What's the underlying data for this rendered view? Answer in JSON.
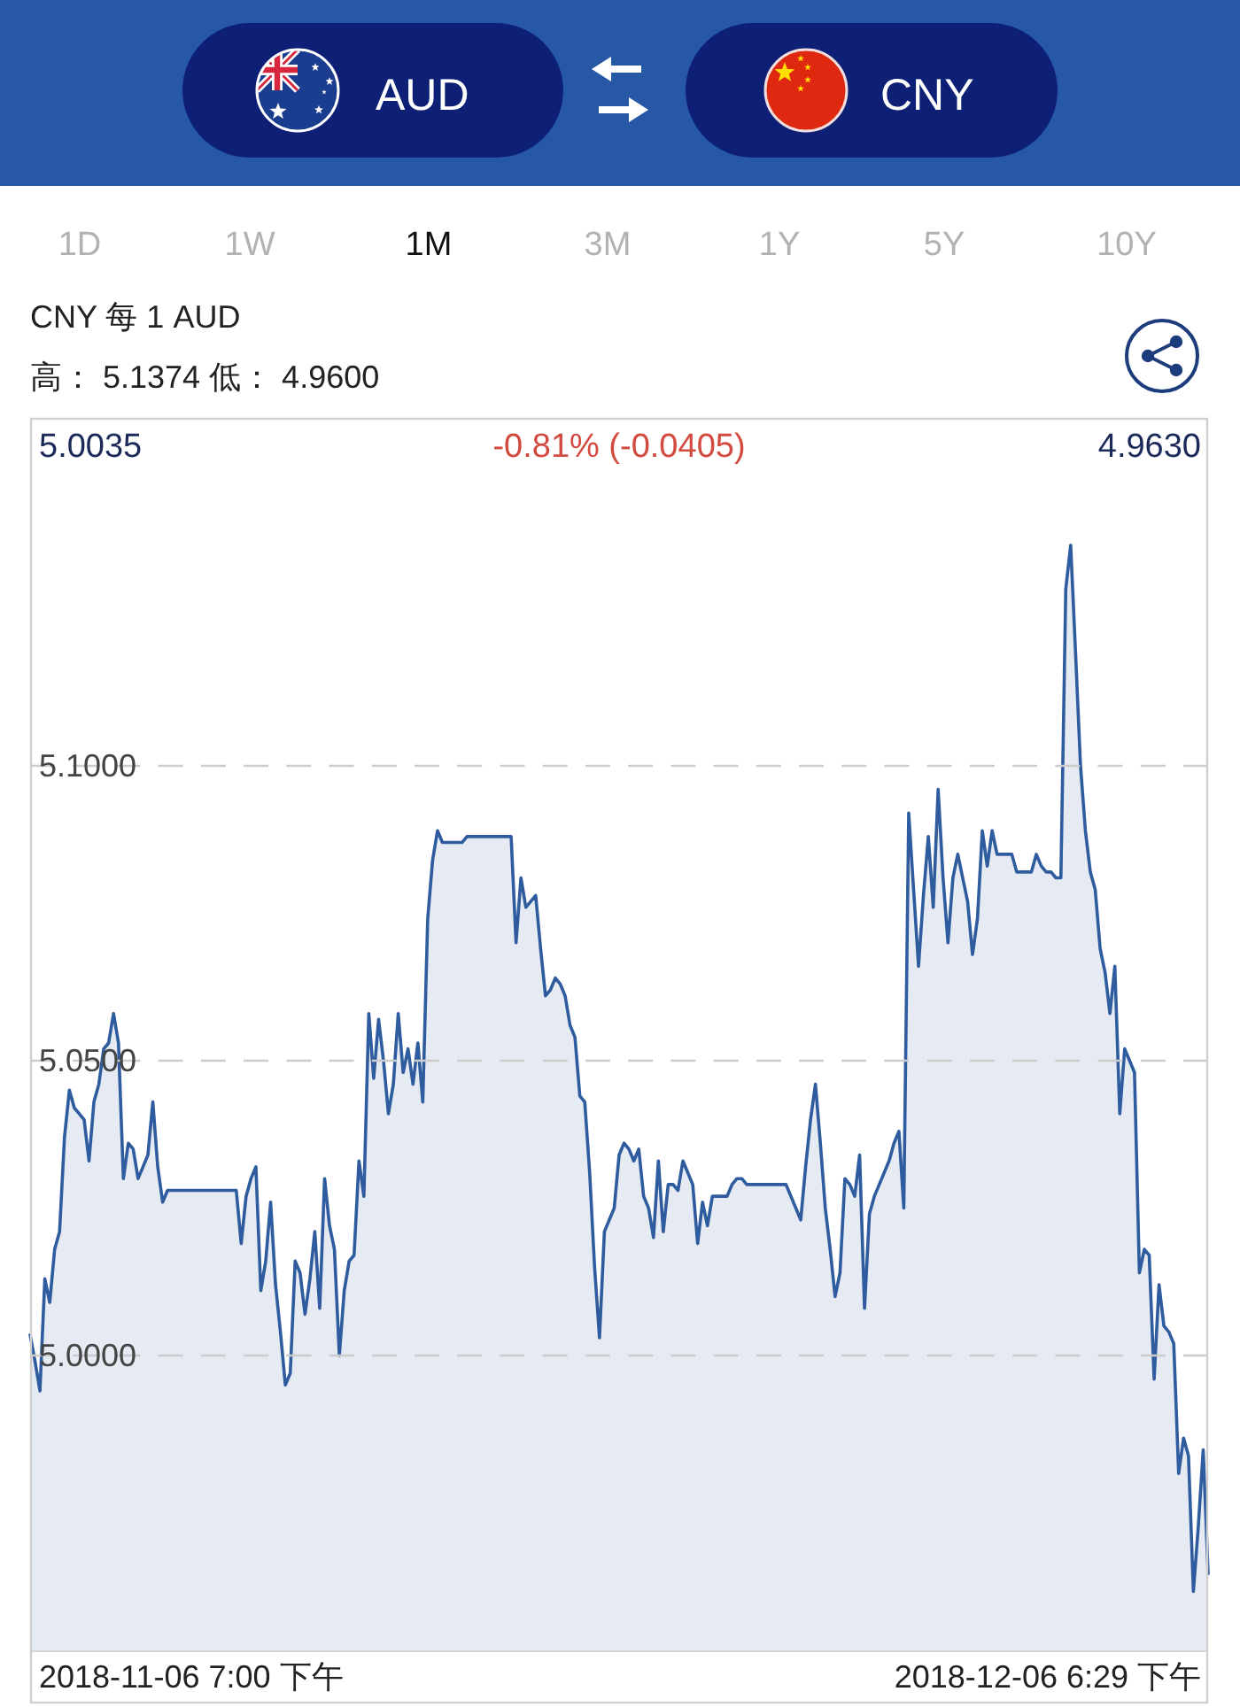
{
  "chart_data": {
    "type": "area",
    "title": "CNY 每 1 AUD",
    "subtitle": "高： 5.1374 低： 4.9600",
    "annotations": [
      "AUD",
      "CNY",
      "1D",
      "1W",
      "1M",
      "3M",
      "1Y",
      "5Y",
      "10Y",
      "5.0035",
      "-0.81% (-0.0405)",
      "4.9630",
      "2018-11-06 7:00 下午",
      "2018-12-06 6:29 下午"
    ],
    "ylim": [
      4.95,
      5.159
    ],
    "yticks": [
      {
        "value": 5.0,
        "label": "5.0000"
      },
      {
        "value": 5.05,
        "label": "5.0500"
      },
      {
        "value": 5.1,
        "label": "5.1000"
      }
    ],
    "grid": "y",
    "categories": [
      null,
      null,
      null,
      null,
      null,
      null,
      null,
      null,
      null,
      null,
      null,
      null,
      null,
      null,
      null,
      null,
      null,
      null,
      null,
      null,
      null,
      null,
      null,
      null,
      null,
      null,
      null,
      null,
      null,
      null,
      null,
      null,
      null,
      null,
      null,
      null,
      null,
      null,
      null,
      null,
      null,
      null,
      null,
      null,
      null,
      null,
      null,
      null,
      null,
      null,
      null,
      null,
      null,
      null,
      null,
      null,
      null,
      null,
      null,
      null,
      null,
      null,
      null,
      null,
      null,
      null,
      null,
      null,
      null,
      null,
      null,
      null,
      null,
      null,
      null,
      null,
      null,
      null,
      null,
      null,
      null,
      null,
      null,
      null,
      null,
      null,
      null,
      null,
      null,
      null,
      null,
      null,
      null,
      null,
      null,
      null,
      null,
      null,
      null,
      null,
      null,
      null,
      null,
      null,
      null,
      null,
      null,
      null,
      null,
      null,
      null,
      null,
      null,
      null,
      null,
      null,
      null,
      null,
      null,
      null,
      null,
      null,
      null,
      null,
      null,
      null,
      null,
      null,
      null,
      null,
      null,
      null,
      null,
      null,
      null,
      null,
      null,
      null,
      null,
      null,
      null,
      null,
      null,
      null,
      null,
      null,
      null,
      null,
      null,
      null,
      null,
      null,
      null,
      null,
      null,
      null,
      null,
      null,
      null,
      null,
      null,
      null,
      null,
      null,
      null,
      null,
      null,
      null,
      null,
      null,
      null,
      null,
      null,
      null,
      null,
      null,
      null,
      null,
      null,
      null,
      null,
      null,
      null,
      null,
      null,
      null,
      null,
      null,
      null,
      null,
      null,
      null,
      null,
      null,
      null,
      null,
      null,
      null,
      null,
      null,
      null,
      null,
      null,
      null,
      null,
      null,
      null,
      null,
      null,
      null,
      null,
      null,
      null,
      null,
      null,
      null,
      null,
      null,
      null,
      null,
      null,
      null,
      null,
      null,
      null,
      null,
      null,
      null,
      null,
      null,
      null,
      null,
      null,
      null,
      null,
      null,
      null,
      null,
      null,
      null,
      null
    ],
    "series": [
      {
        "color": "#2e5c9e",
        "values": [
          5.0035,
          4.999,
          4.994,
          5.013,
          5.009,
          5.018,
          5.021,
          5.037,
          5.045,
          5.042,
          5.041,
          5.04,
          5.033,
          5.043,
          5.046,
          5.052,
          5.053,
          5.058,
          5.053,
          5.03,
          5.036,
          5.035,
          5.03,
          5.032,
          5.034,
          5.043,
          5.032,
          5.026,
          5.028,
          5.028,
          5.028,
          5.028,
          5.028,
          5.028,
          5.028,
          5.028,
          5.028,
          5.028,
          5.028,
          5.028,
          5.028,
          5.028,
          5.028,
          5.019,
          5.027,
          5.03,
          5.032,
          5.011,
          5.016,
          5.026,
          5.012,
          5.004,
          4.995,
          4.997,
          5.016,
          5.014,
          5.007,
          5.013,
          5.021,
          5.008,
          5.03,
          5.022,
          5.018,
          5.0,
          5.011,
          5.016,
          5.017,
          5.033,
          5.027,
          5.058,
          5.047,
          5.057,
          5.05,
          5.041,
          5.046,
          5.058,
          5.048,
          5.052,
          5.046,
          5.053,
          5.043,
          5.074,
          5.084,
          5.089,
          5.087,
          5.087,
          5.087,
          5.087,
          5.087,
          5.088,
          5.088,
          5.088,
          5.088,
          5.088,
          5.088,
          5.088,
          5.088,
          5.088,
          5.088,
          5.07,
          5.081,
          5.076,
          5.077,
          5.078,
          5.069,
          5.061,
          5.062,
          5.064,
          5.063,
          5.061,
          5.056,
          5.054,
          5.044,
          5.043,
          5.031,
          5.015,
          5.003,
          5.021,
          5.023,
          5.025,
          5.034,
          5.036,
          5.035,
          5.033,
          5.035,
          5.027,
          5.025,
          5.02,
          5.033,
          5.021,
          5.029,
          5.029,
          5.028,
          5.033,
          5.031,
          5.029,
          5.019,
          5.026,
          5.022,
          5.027,
          5.027,
          5.027,
          5.027,
          5.029,
          5.03,
          5.03,
          5.029,
          5.029,
          5.029,
          5.029,
          5.029,
          5.029,
          5.029,
          5.029,
          5.029,
          5.027,
          5.025,
          5.023,
          5.032,
          5.04,
          5.046,
          5.036,
          5.025,
          5.018,
          5.01,
          5.014,
          5.03,
          5.029,
          5.027,
          5.034,
          5.008,
          5.024,
          5.027,
          5.029,
          5.031,
          5.033,
          5.036,
          5.038,
          5.025,
          5.092,
          5.079,
          5.066,
          5.078,
          5.088,
          5.076,
          5.096,
          5.081,
          5.07,
          5.081,
          5.085,
          5.081,
          5.077,
          5.068,
          5.074,
          5.089,
          5.083,
          5.089,
          5.085,
          5.085,
          5.085,
          5.085,
          5.082,
          5.082,
          5.082,
          5.082,
          5.085,
          5.083,
          5.082,
          5.082,
          5.081,
          5.081,
          5.13,
          5.1374,
          5.119,
          5.1,
          5.089,
          5.082,
          5.079,
          5.069,
          5.065,
          5.058,
          5.066,
          5.041,
          5.052,
          5.05,
          5.048,
          5.014,
          5.018,
          5.017,
          4.996,
          5.012,
          5.005,
          5.004,
          5.002,
          4.98,
          4.986,
          4.983,
          4.96,
          4.971,
          4.984,
          4.963
        ]
      }
    ]
  }
}
